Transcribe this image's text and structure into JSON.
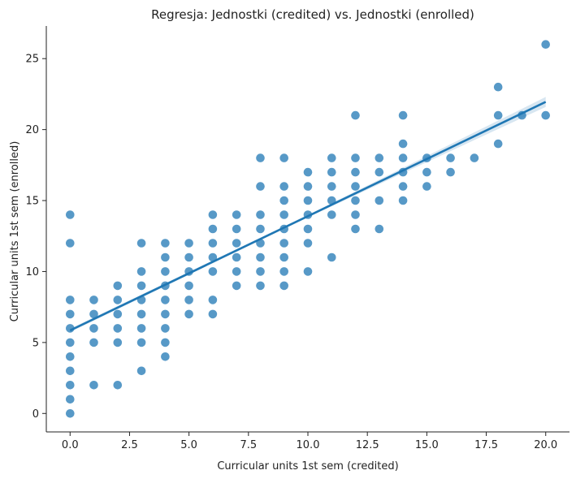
{
  "chart_data": {
    "type": "scatter",
    "title": "Regresja: Jednostki (credited) vs. Jednostki (enrolled)",
    "xlabel": "Curricular units 1st sem (credited)",
    "ylabel": "Curricular units 1st sem (enrolled)",
    "xlim": [
      -1.0,
      21.0
    ],
    "ylim": [
      -1.3,
      27.3
    ],
    "x_ticks": [
      0.0,
      2.5,
      5.0,
      7.5,
      10.0,
      12.5,
      15.0,
      17.5,
      20.0
    ],
    "x_tick_labels": [
      "0.0",
      "2.5",
      "5.0",
      "7.5",
      "10.0",
      "12.5",
      "15.0",
      "17.5",
      "20.0"
    ],
    "y_ticks": [
      0,
      5,
      10,
      15,
      20,
      25
    ],
    "y_tick_labels": [
      "0",
      "5",
      "10",
      "15",
      "20",
      "25"
    ],
    "grid": false,
    "colors": {
      "points": "#1f77b4",
      "line": "#1f77b4",
      "band": "#1f77b4"
    },
    "regression": {
      "x": [
        0,
        20
      ],
      "y": [
        5.85,
        21.95
      ],
      "ci_halfwidth_at_x": [
        [
          0,
          0.12
        ],
        [
          10,
          0.08
        ],
        [
          20,
          0.35
        ]
      ]
    },
    "points": [
      [
        0,
        0
      ],
      [
        0,
        1
      ],
      [
        0,
        2
      ],
      [
        0,
        3
      ],
      [
        0,
        4
      ],
      [
        0,
        5
      ],
      [
        0,
        6
      ],
      [
        0,
        7
      ],
      [
        0,
        8
      ],
      [
        0,
        12
      ],
      [
        0,
        14
      ],
      [
        1,
        2
      ],
      [
        1,
        5
      ],
      [
        1,
        6
      ],
      [
        1,
        7
      ],
      [
        1,
        8
      ],
      [
        2,
        2
      ],
      [
        2,
        5
      ],
      [
        2,
        6
      ],
      [
        2,
        7
      ],
      [
        2,
        8
      ],
      [
        2,
        9
      ],
      [
        3,
        3
      ],
      [
        3,
        5
      ],
      [
        3,
        6
      ],
      [
        3,
        7
      ],
      [
        3,
        8
      ],
      [
        3,
        9
      ],
      [
        3,
        10
      ],
      [
        3,
        12
      ],
      [
        4,
        4
      ],
      [
        4,
        5
      ],
      [
        4,
        6
      ],
      [
        4,
        7
      ],
      [
        4,
        8
      ],
      [
        4,
        9
      ],
      [
        4,
        10
      ],
      [
        4,
        11
      ],
      [
        4,
        12
      ],
      [
        5,
        7
      ],
      [
        5,
        8
      ],
      [
        5,
        9
      ],
      [
        5,
        10
      ],
      [
        5,
        11
      ],
      [
        5,
        12
      ],
      [
        6,
        7
      ],
      [
        6,
        8
      ],
      [
        6,
        10
      ],
      [
        6,
        11
      ],
      [
        6,
        12
      ],
      [
        6,
        13
      ],
      [
        6,
        14
      ],
      [
        7,
        9
      ],
      [
        7,
        10
      ],
      [
        7,
        11
      ],
      [
        7,
        12
      ],
      [
        7,
        13
      ],
      [
        7,
        14
      ],
      [
        8,
        9
      ],
      [
        8,
        10
      ],
      [
        8,
        11
      ],
      [
        8,
        12
      ],
      [
        8,
        13
      ],
      [
        8,
        14
      ],
      [
        8,
        16
      ],
      [
        8,
        18
      ],
      [
        9,
        9
      ],
      [
        9,
        10
      ],
      [
        9,
        11
      ],
      [
        9,
        12
      ],
      [
        9,
        13
      ],
      [
        9,
        14
      ],
      [
        9,
        15
      ],
      [
        9,
        16
      ],
      [
        9,
        18
      ],
      [
        10,
        10
      ],
      [
        10,
        12
      ],
      [
        10,
        13
      ],
      [
        10,
        14
      ],
      [
        10,
        15
      ],
      [
        10,
        16
      ],
      [
        10,
        17
      ],
      [
        11,
        11
      ],
      [
        11,
        14
      ],
      [
        11,
        15
      ],
      [
        11,
        16
      ],
      [
        11,
        17
      ],
      [
        11,
        18
      ],
      [
        12,
        13
      ],
      [
        12,
        14
      ],
      [
        12,
        15
      ],
      [
        12,
        16
      ],
      [
        12,
        17
      ],
      [
        12,
        18
      ],
      [
        12,
        21
      ],
      [
        13,
        13
      ],
      [
        13,
        15
      ],
      [
        13,
        17
      ],
      [
        13,
        18
      ],
      [
        14,
        15
      ],
      [
        14,
        16
      ],
      [
        14,
        17
      ],
      [
        14,
        18
      ],
      [
        14,
        19
      ],
      [
        14,
        21
      ],
      [
        15,
        16
      ],
      [
        15,
        17
      ],
      [
        15,
        18
      ],
      [
        16,
        17
      ],
      [
        16,
        18
      ],
      [
        17,
        18
      ],
      [
        18,
        19
      ],
      [
        18,
        21
      ],
      [
        18,
        23
      ],
      [
        19,
        21
      ],
      [
        20,
        21
      ],
      [
        20,
        26
      ]
    ]
  }
}
